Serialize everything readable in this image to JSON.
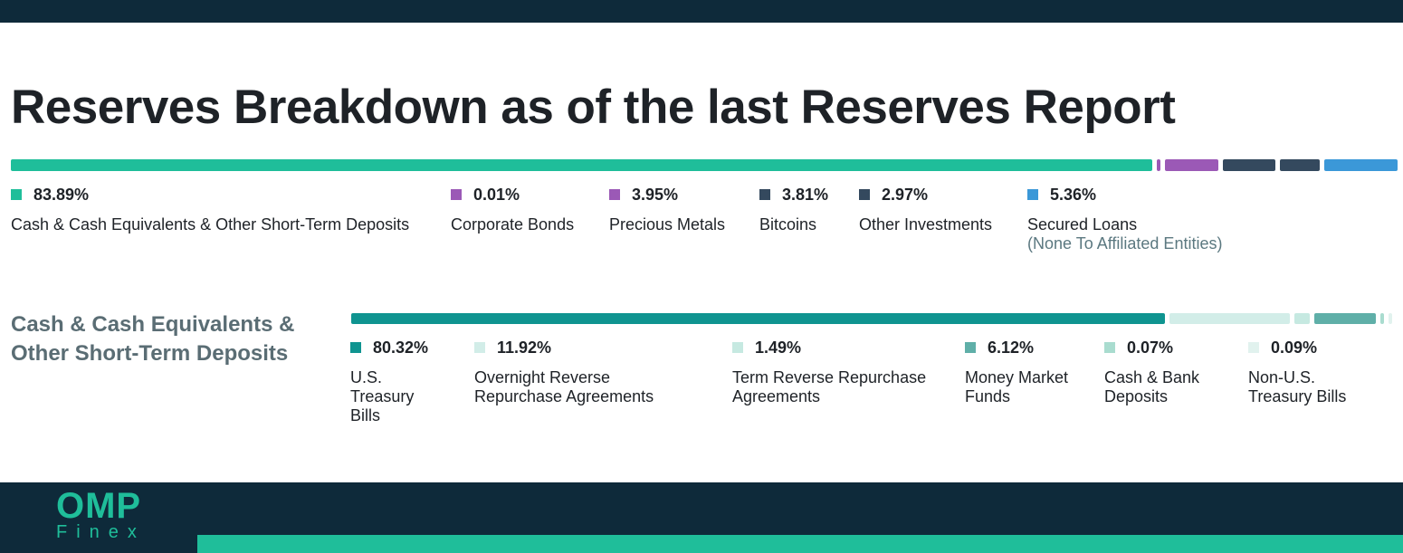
{
  "title": "Reserves Breakdown as of the last Reserves Report",
  "chart_data": [
    {
      "type": "bar",
      "orientation": "horizontal-stacked",
      "title": "Reserves Breakdown as of the last Reserves Report",
      "series": [
        {
          "name": "Cash & Cash Equivalents & Other Short-Term Deposits",
          "value": 83.89,
          "label": "83.89%",
          "color": "#1fbe9a"
        },
        {
          "name": "Corporate Bonds",
          "value": 0.01,
          "label": "0.01%",
          "color": "#9b59b6"
        },
        {
          "name": "Precious Metals",
          "value": 3.95,
          "label": "3.95%",
          "color": "#9b59b6"
        },
        {
          "name": "Bitcoins",
          "value": 3.81,
          "label": "3.81%",
          "color": "#34495e"
        },
        {
          "name": "Other Investments",
          "value": 2.97,
          "label": "2.97%",
          "color": "#34495e"
        },
        {
          "name": "Secured Loans",
          "note": "(None To Affiliated Entities)",
          "value": 5.36,
          "label": "5.36%",
          "color": "#3b98d8"
        }
      ]
    },
    {
      "type": "bar",
      "orientation": "horizontal-stacked",
      "title": "Cash & Cash Equivalents & Other Short-Term Deposits",
      "series": [
        {
          "name": "U.S. Treasury Bills",
          "value": 80.32,
          "label": "80.32%",
          "color": "#0f9490"
        },
        {
          "name": "Overnight Reverse Repurchase Agreements",
          "value": 11.92,
          "label": "11.92%",
          "color": "#d2ede8"
        },
        {
          "name": "Term Reverse Repurchase Agreements",
          "value": 1.49,
          "label": "1.49%",
          "color": "#c6e9e1"
        },
        {
          "name": "Money Market Funds",
          "value": 6.12,
          "label": "6.12%",
          "color": "#5fafa8"
        },
        {
          "name": "Cash & Bank Deposits",
          "value": 0.07,
          "label": "0.07%",
          "color": "#a9dccf"
        },
        {
          "name": "Non-U.S. Treasury Bills",
          "value": 0.09,
          "label": "0.09%",
          "color": "#e1f2ee"
        }
      ]
    }
  ],
  "sub_heading_lines": [
    "Cash & Cash Equivalents &",
    "Other Short-Term Deposits"
  ],
  "legend1_labels": [
    "Cash & Cash Equivalents & Other Short-Term Deposits",
    "Corporate Bonds",
    "Precious Metals",
    "Bitcoins",
    "Other Investments",
    "Secured Loans"
  ],
  "legend2_labels": [
    [
      "U.S.",
      "Treasury",
      "Bills"
    ],
    [
      "Overnight Reverse",
      "Repurchase Agreements"
    ],
    [
      "Term Reverse Repurchase",
      "Agreements"
    ],
    [
      "Money Market",
      "Funds"
    ],
    [
      "Cash & Bank",
      "Deposits"
    ],
    [
      "Non-U.S.",
      "Treasury Bills"
    ]
  ],
  "footer": {
    "logo_main": "OMP",
    "logo_sub": "Finex",
    "band_color": "#0e2a3a",
    "accent_color": "#1fbe9a"
  }
}
